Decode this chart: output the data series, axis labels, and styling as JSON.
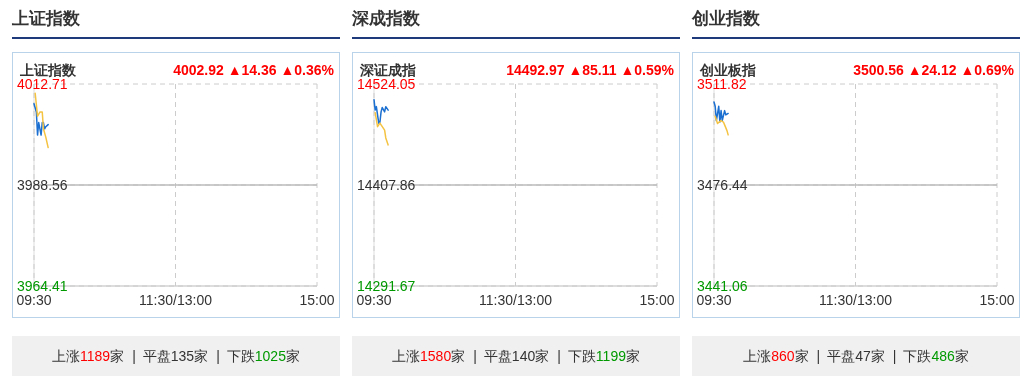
{
  "chart_data": [
    {
      "type": "line",
      "title": "上证指数",
      "subtitle": "上证指数",
      "annotations": [
        "4002.92 ▲14.36 ▲0.36%",
        "上涨1189家",
        "|",
        "平盘135家",
        "|",
        "下跌1025家"
      ],
      "ylim": [
        3964.41,
        4012.71
      ],
      "yticks": [
        3964.41,
        3988.56,
        4012.71
      ],
      "grid": true,
      "ref_lines": [
        {
          "axis": "y",
          "value": 3988.56,
          "color": "#bbbbbb"
        }
      ],
      "categories": [
        "09:30",
        null,
        null,
        null,
        null,
        null,
        null,
        null,
        null,
        null,
        null,
        null,
        null,
        null,
        null,
        null,
        null,
        null,
        null,
        null,
        null,
        null,
        null,
        null,
        null,
        null,
        null,
        null,
        null,
        null,
        null,
        null,
        null,
        null,
        null,
        null,
        null,
        null,
        null,
        null,
        null,
        null,
        null,
        null,
        null,
        null,
        null,
        null,
        null,
        null,
        null,
        null,
        null,
        null,
        null,
        null,
        null,
        null,
        null,
        null,
        null,
        null,
        null,
        null,
        null,
        null,
        null,
        null,
        null,
        null,
        null,
        null,
        null,
        null,
        null,
        null,
        null,
        null,
        null,
        null,
        null,
        null,
        null,
        null,
        null,
        null,
        null,
        null,
        null,
        null,
        null,
        null,
        null,
        null,
        null,
        null,
        null,
        null,
        null,
        null,
        null,
        null,
        null,
        null,
        null,
        null,
        null,
        null,
        null,
        null,
        null,
        null,
        null,
        null,
        null,
        null,
        null,
        null,
        null,
        null,
        "11:30/13:00",
        null,
        null,
        null,
        null,
        null,
        null,
        null,
        null,
        null,
        null,
        null,
        null,
        null,
        null,
        null,
        null,
        null,
        null,
        null,
        null,
        null,
        null,
        null,
        null,
        null,
        null,
        null,
        null,
        null,
        null,
        null,
        null,
        null,
        null,
        null,
        null,
        null,
        null,
        null,
        null,
        null,
        null,
        null,
        null,
        null,
        null,
        null,
        null,
        null,
        null,
        null,
        null,
        null,
        null,
        null,
        null,
        null,
        null,
        null,
        null,
        null,
        null,
        null,
        null,
        null,
        null,
        null,
        null,
        null,
        null,
        null,
        null,
        null,
        null,
        null,
        null,
        null,
        null,
        null,
        null,
        null,
        null,
        null,
        null,
        null,
        null,
        null,
        null,
        null,
        null,
        null,
        null,
        null,
        null,
        null,
        null,
        null,
        null,
        null,
        null,
        null,
        null,
        null,
        null,
        null,
        null,
        null,
        null,
        null,
        null,
        null,
        null,
        null,
        null,
        null,
        null,
        null,
        null,
        null,
        "15:00"
      ],
      "series": [
        {
          "color": "#1a6fd1",
          "values": [
            4008,
            null,
            4006,
            4000.5,
            4003.5,
            null,
            4000.5,
            4003.5,
            4003.5,
            4002,
            4002.5,
            null,
            4003,
            null,
            null,
            null,
            null,
            null,
            null,
            null,
            null,
            null,
            null,
            null,
            null,
            null,
            null,
            null,
            null,
            null,
            null,
            null,
            null,
            null,
            null,
            null,
            null,
            null,
            null,
            null,
            null,
            null,
            null,
            null,
            null,
            null,
            null,
            null,
            null,
            null,
            null,
            null,
            null,
            null,
            null,
            null,
            null,
            null,
            null,
            null,
            null,
            null,
            null,
            null,
            null,
            null,
            null,
            null,
            null,
            null,
            null,
            null,
            null,
            null,
            null,
            null,
            null,
            null,
            null,
            null,
            null,
            null,
            null,
            null,
            null,
            null,
            null,
            null,
            null,
            null,
            null,
            null,
            null,
            null,
            null,
            null,
            null,
            null,
            null,
            null,
            null,
            null,
            null,
            null,
            null,
            null,
            null,
            null,
            null,
            null,
            null,
            null,
            null,
            null,
            null,
            null,
            null,
            null,
            null,
            null,
            null,
            null,
            null,
            null,
            null,
            null,
            null,
            null,
            null,
            null,
            null,
            null,
            null,
            null,
            null,
            null,
            null,
            null,
            null,
            null,
            null,
            null,
            null,
            null,
            null,
            null,
            null,
            null,
            null,
            null,
            null,
            null,
            null,
            null,
            null,
            null,
            null,
            null,
            null,
            null,
            null,
            null,
            null,
            null,
            null,
            null,
            null,
            null,
            null,
            null,
            null,
            null,
            null,
            null,
            null,
            null,
            null,
            null,
            null,
            null,
            null,
            null,
            null,
            null,
            null,
            null,
            null,
            null,
            null,
            null,
            null,
            null,
            null,
            null,
            null,
            null,
            null,
            null,
            null,
            null,
            null,
            null,
            null,
            null,
            null,
            null,
            null,
            null,
            null,
            null,
            null,
            null,
            null,
            null,
            null,
            null,
            null,
            null,
            null,
            null,
            null,
            null,
            null,
            null,
            null,
            null,
            null,
            null,
            null,
            null,
            null,
            null,
            null,
            null,
            null,
            null,
            null,
            null,
            null,
            null,
            null
          ]
        },
        {
          "color": "#f5c342",
          "values": [
            null,
            4010.5,
            null,
            4005,
            null,
            4006,
            null,
            4006,
            4002,
            null,
            4000,
            null,
            3997.5,
            null,
            null,
            null,
            null,
            null,
            null,
            null,
            null,
            null,
            null,
            null,
            null,
            null,
            null,
            null,
            null,
            null,
            null,
            null,
            null,
            null,
            null,
            null,
            null,
            null,
            null,
            null,
            null,
            null,
            null,
            null,
            null,
            null,
            null,
            null,
            null,
            null,
            null,
            null,
            null,
            null,
            null,
            null,
            null,
            null,
            null,
            null,
            null,
            null,
            null,
            null,
            null,
            null,
            null,
            null,
            null,
            null,
            null,
            null,
            null,
            null,
            null,
            null,
            null,
            null,
            null,
            null,
            null,
            null,
            null,
            null,
            null,
            null,
            null,
            null,
            null,
            null,
            null,
            null,
            null,
            null,
            null,
            null,
            null,
            null,
            null,
            null,
            null,
            null,
            null,
            null,
            null,
            null,
            null,
            null,
            null,
            null,
            null,
            null,
            null,
            null,
            null,
            null,
            null,
            null,
            null,
            null,
            null,
            null,
            null,
            null,
            null,
            null,
            null,
            null,
            null,
            null,
            null,
            null,
            null,
            null,
            null,
            null,
            null,
            null,
            null,
            null,
            null,
            null,
            null,
            null,
            null,
            null,
            null,
            null,
            null,
            null,
            null,
            null,
            null,
            null,
            null,
            null,
            null,
            null,
            null,
            null,
            null,
            null,
            null,
            null,
            null,
            null,
            null,
            null,
            null,
            null,
            null,
            null,
            null,
            null,
            null,
            null,
            null,
            null,
            null,
            null,
            null,
            null,
            null,
            null,
            null,
            null,
            null,
            null,
            null,
            null,
            null,
            null,
            null,
            null,
            null,
            null,
            null,
            null,
            null,
            null,
            null,
            null,
            null,
            null,
            null,
            null,
            null,
            null,
            null,
            null,
            null,
            null,
            null,
            null,
            null,
            null,
            null,
            null,
            null,
            null,
            null,
            null,
            null,
            null,
            null,
            null,
            null,
            null,
            null,
            null,
            null,
            null,
            null,
            null,
            null,
            null,
            null,
            null,
            null,
            null,
            null
          ]
        }
      ]
    },
    {
      "type": "line",
      "title": "深成指数",
      "subtitle": "深证成指",
      "annotations": [
        "14492.97 ▲85.11 ▲0.59%",
        "上涨1580家",
        "|",
        "平盘140家",
        "|",
        "下跌1199家"
      ],
      "ylim": [
        14291.67,
        14524.05
      ],
      "yticks": [
        14291.67,
        14407.86,
        14524.05
      ],
      "grid": true,
      "ref_lines": [
        {
          "axis": "y",
          "value": 14407.86,
          "color": "#bbbbbb"
        }
      ],
      "categories": [
        "09:30",
        null,
        null,
        null,
        null,
        null,
        null,
        null,
        null,
        null,
        null,
        null,
        null,
        null,
        null,
        null,
        null,
        null,
        null,
        null,
        null,
        null,
        null,
        null,
        null,
        null,
        null,
        null,
        null,
        null,
        null,
        null,
        null,
        null,
        null,
        null,
        null,
        null,
        null,
        null,
        null,
        null,
        null,
        null,
        null,
        null,
        null,
        null,
        null,
        null,
        null,
        null,
        null,
        null,
        null,
        null,
        null,
        null,
        null,
        null,
        null,
        null,
        null,
        null,
        null,
        null,
        null,
        null,
        null,
        null,
        null,
        null,
        null,
        null,
        null,
        null,
        null,
        null,
        null,
        null,
        null,
        null,
        null,
        null,
        null,
        null,
        null,
        null,
        null,
        null,
        null,
        null,
        null,
        null,
        null,
        null,
        null,
        null,
        null,
        null,
        null,
        null,
        null,
        null,
        null,
        null,
        null,
        null,
        null,
        null,
        null,
        null,
        null,
        null,
        null,
        null,
        null,
        null,
        null,
        null,
        "11:30/13:00",
        null,
        null,
        null,
        null,
        null,
        null,
        null,
        null,
        null,
        null,
        null,
        null,
        null,
        null,
        null,
        null,
        null,
        null,
        null,
        null,
        null,
        null,
        null,
        null,
        null,
        null,
        null,
        null,
        null,
        null,
        null,
        null,
        null,
        null,
        null,
        null,
        null,
        null,
        null,
        null,
        null,
        null,
        null,
        null,
        null,
        null,
        null,
        null,
        null,
        null,
        null,
        null,
        null,
        null,
        null,
        null,
        null,
        null,
        null,
        null,
        null,
        null,
        null,
        null,
        null,
        null,
        null,
        null,
        null,
        null,
        null,
        null,
        null,
        null,
        null,
        null,
        null,
        null,
        null,
        null,
        null,
        null,
        null,
        null,
        null,
        null,
        null,
        null,
        null,
        null,
        null,
        null,
        null,
        null,
        null,
        null,
        null,
        null,
        null,
        null,
        null,
        null,
        null,
        null,
        null,
        null,
        null,
        null,
        null,
        null,
        null,
        null,
        null,
        null,
        null,
        null,
        null,
        null,
        null,
        "15:00"
      ],
      "series": [
        {
          "color": "#1a6fd1",
          "values": [
            14506,
            14494,
            14498,
            null,
            14479,
            14480,
            14492,
            14497,
            null,
            14492,
            14498,
            null,
            14494,
            null,
            null,
            null,
            null,
            null,
            null,
            null,
            null,
            null,
            null,
            null,
            null,
            null,
            null,
            null,
            null,
            null,
            null,
            null,
            null,
            null,
            null,
            null,
            null,
            null,
            null,
            null,
            null,
            null,
            null,
            null,
            null,
            null,
            null,
            null,
            null,
            null,
            null,
            null,
            null,
            null,
            null,
            null,
            null,
            null,
            null,
            null,
            null,
            null,
            null,
            null,
            null,
            null,
            null,
            null,
            null,
            null,
            null,
            null,
            null,
            null,
            null,
            null,
            null,
            null,
            null,
            null,
            null,
            null,
            null,
            null,
            null,
            null,
            null,
            null,
            null,
            null,
            null,
            null,
            null,
            null,
            null,
            null,
            null,
            null,
            null,
            null,
            null,
            null,
            null,
            null,
            null,
            null,
            null,
            null,
            null,
            null,
            null,
            null,
            null,
            null,
            null,
            null,
            null,
            null,
            null,
            null,
            null,
            null,
            null,
            null,
            null,
            null,
            null,
            null,
            null,
            null,
            null,
            null,
            null,
            null,
            null,
            null,
            null,
            null,
            null,
            null,
            null,
            null,
            null,
            null,
            null,
            null,
            null,
            null,
            null,
            null,
            null,
            null,
            null,
            null,
            null,
            null,
            null,
            null,
            null,
            null,
            null,
            null,
            null,
            null,
            null,
            null,
            null,
            null,
            null,
            null,
            null,
            null,
            null,
            null,
            null,
            null,
            null,
            null,
            null,
            null,
            null,
            null,
            null,
            null,
            null,
            null,
            null,
            null,
            null,
            null,
            null,
            null,
            null,
            null,
            null,
            null,
            null,
            null,
            null,
            null,
            null,
            null,
            null,
            null,
            null,
            null,
            null,
            null,
            null,
            null,
            null,
            null,
            null,
            null,
            null,
            null,
            null,
            null,
            null,
            null,
            null,
            null,
            null,
            null,
            null,
            null,
            null,
            null,
            null,
            null,
            null,
            null,
            null,
            null,
            null,
            null,
            null,
            null,
            null,
            null,
            null
          ]
        },
        {
          "color": "#f5c342",
          "values": [
            null,
            14491,
            null,
            14475,
            null,
            14479,
            null,
            14475,
            null,
            14471,
            14462,
            null,
            14454,
            null,
            null,
            null,
            null,
            null,
            null,
            null,
            null,
            null,
            null,
            null,
            null,
            null,
            null,
            null,
            null,
            null,
            null,
            null,
            null,
            null,
            null,
            null,
            null,
            null,
            null,
            null,
            null,
            null,
            null,
            null,
            null,
            null,
            null,
            null,
            null,
            null,
            null,
            null,
            null,
            null,
            null,
            null,
            null,
            null,
            null,
            null,
            null,
            null,
            null,
            null,
            null,
            null,
            null,
            null,
            null,
            null,
            null,
            null,
            null,
            null,
            null,
            null,
            null,
            null,
            null,
            null,
            null,
            null,
            null,
            null,
            null,
            null,
            null,
            null,
            null,
            null,
            null,
            null,
            null,
            null,
            null,
            null,
            null,
            null,
            null,
            null,
            null,
            null,
            null,
            null,
            null,
            null,
            null,
            null,
            null,
            null,
            null,
            null,
            null,
            null,
            null,
            null,
            null,
            null,
            null,
            null,
            null,
            null,
            null,
            null,
            null,
            null,
            null,
            null,
            null,
            null,
            null,
            null,
            null,
            null,
            null,
            null,
            null,
            null,
            null,
            null,
            null,
            null,
            null,
            null,
            null,
            null,
            null,
            null,
            null,
            null,
            null,
            null,
            null,
            null,
            null,
            null,
            null,
            null,
            null,
            null,
            null,
            null,
            null,
            null,
            null,
            null,
            null,
            null,
            null,
            null,
            null,
            null,
            null,
            null,
            null,
            null,
            null,
            null,
            null,
            null,
            null,
            null,
            null,
            null,
            null,
            null,
            null,
            null,
            null,
            null,
            null,
            null,
            null,
            null,
            null,
            null,
            null,
            null,
            null,
            null,
            null,
            null,
            null,
            null,
            null,
            null,
            null,
            null,
            null,
            null,
            null,
            null,
            null,
            null,
            null,
            null,
            null,
            null,
            null,
            null,
            null,
            null,
            null,
            null,
            null,
            null,
            null,
            null,
            null,
            null,
            null,
            null,
            null,
            null,
            null,
            null,
            null,
            null,
            null,
            null,
            null
          ]
        }
      ]
    },
    {
      "type": "line",
      "title": "创业指数",
      "subtitle": "创业板指",
      "annotations": [
        "3500.56 ▲24.12 ▲0.69%",
        "上涨860家",
        "|",
        "平盘47家",
        "|",
        "下跌486家"
      ],
      "ylim": [
        3441.06,
        3511.82
      ],
      "yticks": [
        3441.06,
        3476.44,
        3511.82
      ],
      "grid": true,
      "ref_lines": [
        {
          "axis": "y",
          "value": 3476.44,
          "color": "#bbbbbb"
        }
      ],
      "categories": [
        "09:30",
        null,
        null,
        null,
        null,
        null,
        null,
        null,
        null,
        null,
        null,
        null,
        null,
        null,
        null,
        null,
        null,
        null,
        null,
        null,
        null,
        null,
        null,
        null,
        null,
        null,
        null,
        null,
        null,
        null,
        null,
        null,
        null,
        null,
        null,
        null,
        null,
        null,
        null,
        null,
        null,
        null,
        null,
        null,
        null,
        null,
        null,
        null,
        null,
        null,
        null,
        null,
        null,
        null,
        null,
        null,
        null,
        null,
        null,
        null,
        null,
        null,
        null,
        null,
        null,
        null,
        null,
        null,
        null,
        null,
        null,
        null,
        null,
        null,
        null,
        null,
        null,
        null,
        null,
        null,
        null,
        null,
        null,
        null,
        null,
        null,
        null,
        null,
        null,
        null,
        null,
        null,
        null,
        null,
        null,
        null,
        null,
        null,
        null,
        null,
        null,
        null,
        null,
        null,
        null,
        null,
        null,
        null,
        null,
        null,
        null,
        null,
        null,
        null,
        null,
        null,
        null,
        null,
        null,
        null,
        "11:30/13:00",
        null,
        null,
        null,
        null,
        null,
        null,
        null,
        null,
        null,
        null,
        null,
        null,
        null,
        null,
        null,
        null,
        null,
        null,
        null,
        null,
        null,
        null,
        null,
        null,
        null,
        null,
        null,
        null,
        null,
        null,
        null,
        null,
        null,
        null,
        null,
        null,
        null,
        null,
        null,
        null,
        null,
        null,
        null,
        null,
        null,
        null,
        null,
        null,
        null,
        null,
        null,
        null,
        null,
        null,
        null,
        null,
        null,
        null,
        null,
        null,
        null,
        null,
        null,
        null,
        null,
        null,
        null,
        null,
        null,
        null,
        null,
        null,
        null,
        null,
        null,
        null,
        null,
        null,
        null,
        null,
        null,
        null,
        null,
        null,
        null,
        null,
        null,
        null,
        null,
        null,
        null,
        null,
        null,
        null,
        null,
        null,
        null,
        null,
        null,
        null,
        null,
        null,
        null,
        null,
        null,
        null,
        null,
        null,
        null,
        null,
        null,
        null,
        null,
        null,
        null,
        null,
        null,
        null,
        null,
        "15:00"
      ],
      "series": [
        {
          "color": "#1a6fd1",
          "values": [
            3505.5,
            3504,
            3499,
            null,
            3504,
            3498.5,
            3502.5,
            3499,
            null,
            3502.5,
            3501,
            null,
            3501.5,
            null,
            null,
            null,
            null,
            null,
            null,
            null,
            null,
            null,
            null,
            null,
            null,
            null,
            null,
            null,
            null,
            null,
            null,
            null,
            null,
            null,
            null,
            null,
            null,
            null,
            null,
            null,
            null,
            null,
            null,
            null,
            null,
            null,
            null,
            null,
            null,
            null,
            null,
            null,
            null,
            null,
            null,
            null,
            null,
            null,
            null,
            null,
            null,
            null,
            null,
            null,
            null,
            null,
            null,
            null,
            null,
            null,
            null,
            null,
            null,
            null,
            null,
            null,
            null,
            null,
            null,
            null,
            null,
            null,
            null,
            null,
            null,
            null,
            null,
            null,
            null,
            null,
            null,
            null,
            null,
            null,
            null,
            null,
            null,
            null,
            null,
            null,
            null,
            null,
            null,
            null,
            null,
            null,
            null,
            null,
            null,
            null,
            null,
            null,
            null,
            null,
            null,
            null,
            null,
            null,
            null,
            null,
            null,
            null,
            null,
            null,
            null,
            null,
            null,
            null,
            null,
            null,
            null,
            null,
            null,
            null,
            null,
            null,
            null,
            null,
            null,
            null,
            null,
            null,
            null,
            null,
            null,
            null,
            null,
            null,
            null,
            null,
            null,
            null,
            null,
            null,
            null,
            null,
            null,
            null,
            null,
            null,
            null,
            null,
            null,
            null,
            null,
            null,
            null,
            null,
            null,
            null,
            null,
            null,
            null,
            null,
            null,
            null,
            null,
            null,
            null,
            null,
            null,
            null,
            null,
            null,
            null,
            null,
            null,
            null,
            null,
            null,
            null,
            null,
            null,
            null,
            null,
            null,
            null,
            null,
            null,
            null,
            null,
            null,
            null,
            null,
            null,
            null,
            null,
            null,
            null,
            null,
            null,
            null,
            null,
            null,
            null,
            null,
            null,
            null,
            null,
            null,
            null,
            null,
            null,
            null,
            null,
            null,
            null,
            null,
            null,
            null,
            null,
            null,
            null,
            null,
            null,
            null,
            null,
            null,
            null,
            null,
            null
          ]
        },
        {
          "color": "#f5c342",
          "values": [
            null,
            3500.5,
            null,
            3498,
            null,
            null,
            3499,
            null,
            3498.5,
            3497.5,
            null,
            3495.5,
            3494,
            null,
            null,
            null,
            null,
            null,
            null,
            null,
            null,
            null,
            null,
            null,
            null,
            null,
            null,
            null,
            null,
            null,
            null,
            null,
            null,
            null,
            null,
            null,
            null,
            null,
            null,
            null,
            null,
            null,
            null,
            null,
            null,
            null,
            null,
            null,
            null,
            null,
            null,
            null,
            null,
            null,
            null,
            null,
            null,
            null,
            null,
            null,
            null,
            null,
            null,
            null,
            null,
            null,
            null,
            null,
            null,
            null,
            null,
            null,
            null,
            null,
            null,
            null,
            null,
            null,
            null,
            null,
            null,
            null,
            null,
            null,
            null,
            null,
            null,
            null,
            null,
            null,
            null,
            null,
            null,
            null,
            null,
            null,
            null,
            null,
            null,
            null,
            null,
            null,
            null,
            null,
            null,
            null,
            null,
            null,
            null,
            null,
            null,
            null,
            null,
            null,
            null,
            null,
            null,
            null,
            null,
            null,
            null,
            null,
            null,
            null,
            null,
            null,
            null,
            null,
            null,
            null,
            null,
            null,
            null,
            null,
            null,
            null,
            null,
            null,
            null,
            null,
            null,
            null,
            null,
            null,
            null,
            null,
            null,
            null,
            null,
            null,
            null,
            null,
            null,
            null,
            null,
            null,
            null,
            null,
            null,
            null,
            null,
            null,
            null,
            null,
            null,
            null,
            null,
            null,
            null,
            null,
            null,
            null,
            null,
            null,
            null,
            null,
            null,
            null,
            null,
            null,
            null,
            null,
            null,
            null,
            null,
            null,
            null,
            null,
            null,
            null,
            null,
            null,
            null,
            null,
            null,
            null,
            null,
            null,
            null,
            null,
            null,
            null,
            null,
            null,
            null,
            null,
            null,
            null,
            null,
            null,
            null,
            null,
            null,
            null,
            null,
            null,
            null,
            null,
            null,
            null,
            null,
            null,
            null,
            null,
            null,
            null,
            null,
            null,
            null,
            null,
            null,
            null,
            null,
            null,
            null,
            null,
            null,
            null,
            null,
            null,
            null
          ]
        }
      ]
    }
  ]
}
